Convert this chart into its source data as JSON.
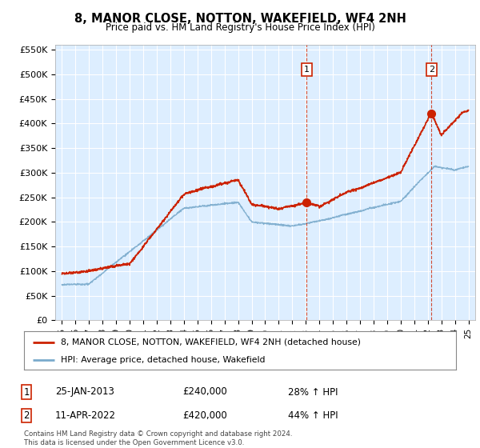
{
  "title": "8, MANOR CLOSE, NOTTON, WAKEFIELD, WF4 2NH",
  "subtitle": "Price paid vs. HM Land Registry's House Price Index (HPI)",
  "ylim": [
    0,
    560000
  ],
  "yticks": [
    0,
    50000,
    100000,
    150000,
    200000,
    250000,
    300000,
    350000,
    400000,
    450000,
    500000,
    550000
  ],
  "ytick_labels": [
    "£0",
    "£50K",
    "£100K",
    "£150K",
    "£200K",
    "£250K",
    "£300K",
    "£350K",
    "£400K",
    "£450K",
    "£500K",
    "£550K"
  ],
  "background_color": "#ffffff",
  "chart_bg_color": "#ddeeff",
  "grid_color": "#ffffff",
  "red_color": "#cc2200",
  "blue_color": "#7aabcc",
  "marker1_x": 2013.07,
  "marker1_y": 240000,
  "marker2_x": 2022.28,
  "marker2_y": 420000,
  "annotation1": [
    "1",
    "25-JAN-2013",
    "£240,000",
    "28% ↑ HPI"
  ],
  "annotation2": [
    "2",
    "11-APR-2022",
    "£420,000",
    "44% ↑ HPI"
  ],
  "legend1": "8, MANOR CLOSE, NOTTON, WAKEFIELD, WF4 2NH (detached house)",
  "legend2": "HPI: Average price, detached house, Wakefield",
  "footer": "Contains HM Land Registry data © Crown copyright and database right 2024.\nThis data is licensed under the Open Government Licence v3.0.",
  "xmin": 1994.5,
  "xmax": 2025.5
}
